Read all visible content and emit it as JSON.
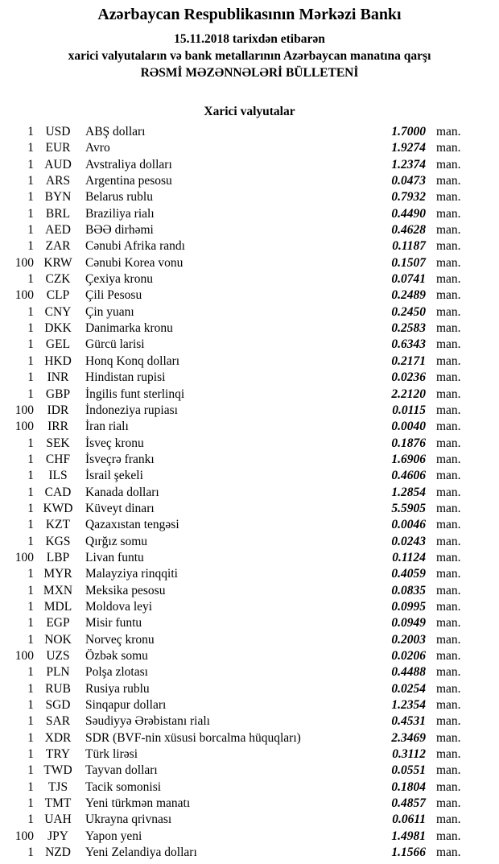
{
  "colors": {
    "text": "#000000",
    "background": "#ffffff"
  },
  "header": {
    "bank_name": "Azərbaycan Respublikasının Mərkəzi Bankı",
    "date_line": "15.11.2018 tarixdən etibarən",
    "subject_line": "xarici valyutaların və bank metallarının Azərbaycan manatına qarşı",
    "bulletin_title": "RƏSMİ MƏZƏNNƏLƏRİ BÜLLETENİ"
  },
  "section": {
    "title": "Xarici valyutalar"
  },
  "table": {
    "unit_label": "man.",
    "rows": [
      {
        "qty": "1",
        "code": "USD",
        "name": "ABŞ dolları",
        "rate": "1.7000"
      },
      {
        "qty": "1",
        "code": "EUR",
        "name": "Avro",
        "rate": "1.9274"
      },
      {
        "qty": "1",
        "code": "AUD",
        "name": "Avstraliya dolları",
        "rate": "1.2374"
      },
      {
        "qty": "1",
        "code": "ARS",
        "name": "Argentina pesosu",
        "rate": "0.0473"
      },
      {
        "qty": "1",
        "code": "BYN",
        "name": "Belarus rublu",
        "rate": "0.7932"
      },
      {
        "qty": "1",
        "code": "BRL",
        "name": "Braziliya rialı",
        "rate": "0.4490"
      },
      {
        "qty": "1",
        "code": "AED",
        "name": "BƏƏ dirhəmi",
        "rate": "0.4628"
      },
      {
        "qty": "1",
        "code": "ZAR",
        "name": "Cənubi Afrika randı",
        "rate": "0.1187"
      },
      {
        "qty": "100",
        "code": "KRW",
        "name": "Cənubi Korea vonu",
        "rate": "0.1507"
      },
      {
        "qty": "1",
        "code": "CZK",
        "name": "Çexiya kronu",
        "rate": "0.0741"
      },
      {
        "qty": "100",
        "code": "CLP",
        "name": "Çili Pesosu",
        "rate": "0.2489"
      },
      {
        "qty": "1",
        "code": "CNY",
        "name": "Çin yuanı",
        "rate": "0.2450"
      },
      {
        "qty": "1",
        "code": "DKK",
        "name": "Danimarka kronu",
        "rate": "0.2583"
      },
      {
        "qty": "1",
        "code": "GEL",
        "name": "Gürcü larisi",
        "rate": "0.6343"
      },
      {
        "qty": "1",
        "code": "HKD",
        "name": "Honq Konq dolları",
        "rate": "0.2171"
      },
      {
        "qty": "1",
        "code": "INR",
        "name": "Hindistan rupisi",
        "rate": "0.0236"
      },
      {
        "qty": "1",
        "code": "GBP",
        "name": "İngilis funt sterlinqi",
        "rate": "2.2120"
      },
      {
        "qty": "100",
        "code": "IDR",
        "name": "İndoneziya rupiası",
        "rate": "0.0115"
      },
      {
        "qty": "100",
        "code": "IRR",
        "name": "İran rialı",
        "rate": "0.0040"
      },
      {
        "qty": "1",
        "code": "SEK",
        "name": "İsveç kronu",
        "rate": "0.1876"
      },
      {
        "qty": "1",
        "code": "CHF",
        "name": "İsveçrə frankı",
        "rate": "1.6906"
      },
      {
        "qty": "1",
        "code": "ILS",
        "name": "İsrail şekeli",
        "rate": "0.4606"
      },
      {
        "qty": "1",
        "code": "CAD",
        "name": "Kanada dolları",
        "rate": "1.2854"
      },
      {
        "qty": "1",
        "code": "KWD",
        "name": "Küveyt dinarı",
        "rate": "5.5905"
      },
      {
        "qty": "1",
        "code": "KZT",
        "name": "Qazaxıstan tengəsi",
        "rate": "0.0046"
      },
      {
        "qty": "1",
        "code": "KGS",
        "name": "Qırğız somu",
        "rate": "0.0243"
      },
      {
        "qty": "100",
        "code": "LBP",
        "name": "Livan funtu",
        "rate": "0.1124"
      },
      {
        "qty": "1",
        "code": "MYR",
        "name": "Malayziya rinqqiti",
        "rate": "0.4059"
      },
      {
        "qty": "1",
        "code": "MXN",
        "name": "Meksika pesosu",
        "rate": "0.0835"
      },
      {
        "qty": "1",
        "code": "MDL",
        "name": "Moldova leyi",
        "rate": "0.0995"
      },
      {
        "qty": "1",
        "code": "EGP",
        "name": "Misir funtu",
        "rate": "0.0949"
      },
      {
        "qty": "1",
        "code": "NOK",
        "name": "Norveç kronu",
        "rate": "0.2003"
      },
      {
        "qty": "100",
        "code": "UZS",
        "name": "Özbək somu",
        "rate": "0.0206"
      },
      {
        "qty": "1",
        "code": "PLN",
        "name": "Polşa zlotası",
        "rate": "0.4488"
      },
      {
        "qty": "1",
        "code": "RUB",
        "name": "Rusiya rublu",
        "rate": "0.0254"
      },
      {
        "qty": "1",
        "code": "SGD",
        "name": "Sinqapur dolları",
        "rate": "1.2354"
      },
      {
        "qty": "1",
        "code": "SAR",
        "name": "Səudiyyə Ərəbistanı rialı",
        "rate": "0.4531"
      },
      {
        "qty": "1",
        "code": "XDR",
        "name": "SDR (BVF-nin xüsusi borcalma hüquqları)",
        "rate": "2.3469"
      },
      {
        "qty": "1",
        "code": "TRY",
        "name": "Türk lirəsi",
        "rate": "0.3112"
      },
      {
        "qty": "1",
        "code": "TWD",
        "name": "Tayvan dolları",
        "rate": "0.0551"
      },
      {
        "qty": "1",
        "code": "TJS",
        "name": "Tacik somonisi",
        "rate": "0.1804"
      },
      {
        "qty": "1",
        "code": "TMT",
        "name": "Yeni türkmən manatı",
        "rate": "0.4857"
      },
      {
        "qty": "1",
        "code": "UAH",
        "name": "Ukrayna qrivnası",
        "rate": "0.0611"
      },
      {
        "qty": "100",
        "code": "JPY",
        "name": "Yapon yeni",
        "rate": "1.4981"
      },
      {
        "qty": "1",
        "code": "NZD",
        "name": "Yeni Zelandiya dolları",
        "rate": "1.1566"
      }
    ]
  }
}
